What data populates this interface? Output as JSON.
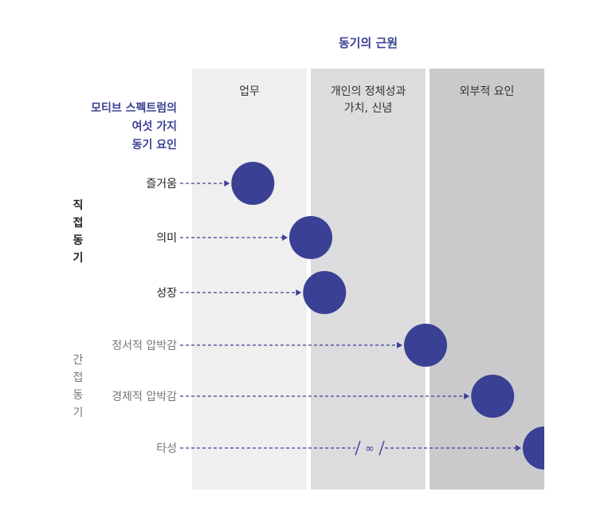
{
  "title": "동기의 근원",
  "columns": [
    {
      "label_lines": [
        "업무"
      ],
      "fill": "#efefef"
    },
    {
      "label_lines": [
        "개인의 정체성과",
        "가치, 신념"
      ],
      "fill": "#dcdcde"
    },
    {
      "label_lines": [
        "외부적 요인"
      ],
      "fill": "#cacacc"
    }
  ],
  "spectrum_label_lines": [
    "모티브 스펙트럼의",
    "여섯 가지",
    "동기 요인"
  ],
  "groups": [
    {
      "name": "direct",
      "chars": [
        "직",
        "접",
        "동",
        "기"
      ]
    },
    {
      "name": "indirect",
      "chars": [
        "간",
        "접",
        "동",
        "기"
      ]
    }
  ],
  "factors": [
    {
      "label": "즐거움",
      "group": "direct",
      "column": 0,
      "position": 0.53
    },
    {
      "label": "의미",
      "group": "direct",
      "column": 1,
      "position": 0.0
    },
    {
      "label": "성장",
      "group": "direct",
      "column": 1,
      "position": 0.12
    },
    {
      "label": "정서적 압박감",
      "group": "indirect",
      "column": 1,
      "position": 1.0
    },
    {
      "label": "경제적 압박감",
      "group": "indirect",
      "column": 2,
      "position": 0.55
    },
    {
      "label": "타성",
      "group": "indirect",
      "column": 2,
      "position": 1.0
    }
  ],
  "break_symbol": "∞",
  "colors": {
    "accent": "#3a4094",
    "direct_text": "#222222",
    "indirect_text": "#777777"
  }
}
